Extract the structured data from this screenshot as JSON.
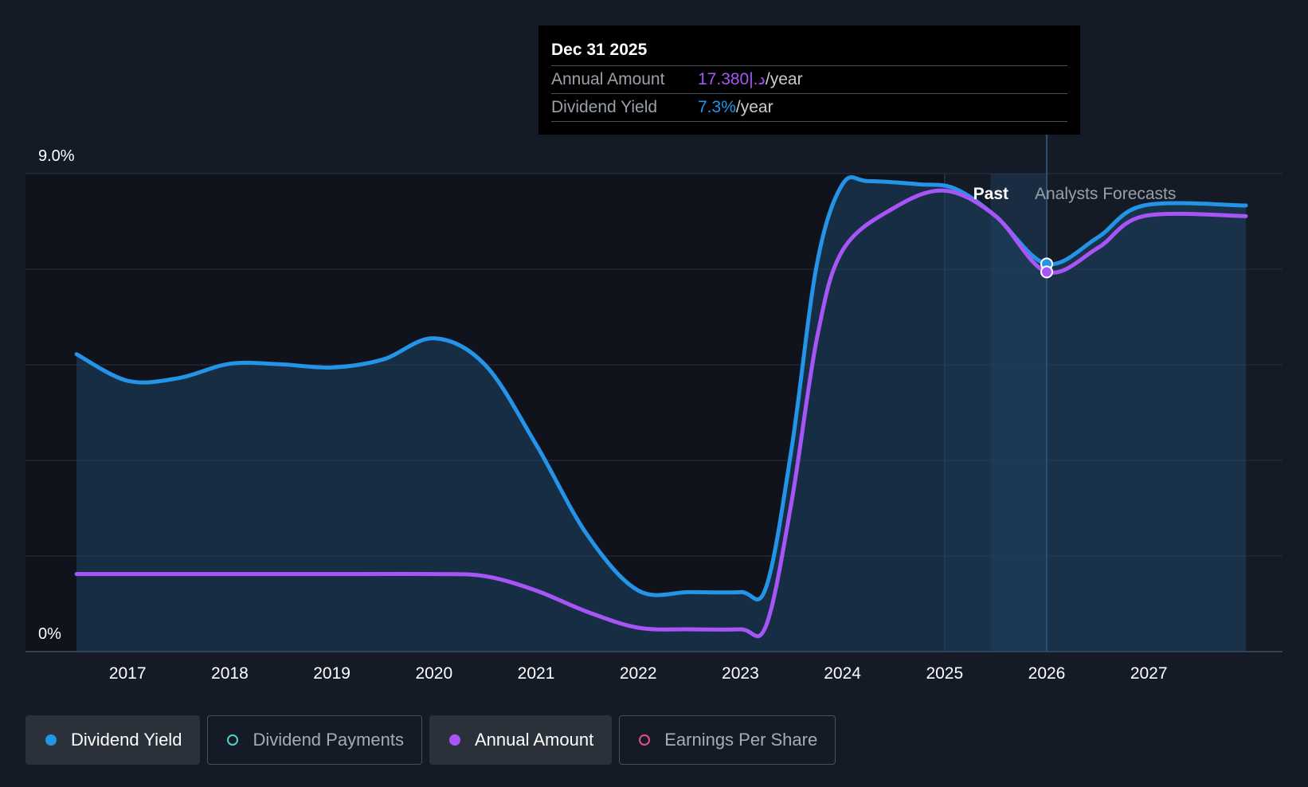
{
  "tooltip": {
    "date": "Dec 31 2025",
    "rows": [
      {
        "label": "Annual Amount",
        "value": "17.380|.د",
        "unit": "/year",
        "color": "#a855f7"
      },
      {
        "label": "Dividend Yield",
        "value": "7.3%",
        "unit": "/year",
        "color": "#2394e8"
      }
    ]
  },
  "legend": [
    {
      "label": "Dividend Yield",
      "color": "#2394e8",
      "filled": true,
      "active": true
    },
    {
      "label": "Dividend Payments",
      "color": "#4fd1c5",
      "filled": false,
      "active": false
    },
    {
      "label": "Annual Amount",
      "color": "#a855f7",
      "filled": true,
      "active": true
    },
    {
      "label": "Earnings Per Share",
      "color": "#e0508a",
      "filled": false,
      "active": false
    }
  ],
  "chart_data": {
    "type": "line",
    "title": "",
    "xlabel": "",
    "ylabel": "",
    "y_tick_labels": [
      "0%",
      "9.0%"
    ],
    "ylim": [
      0,
      9.0
    ],
    "xlim": [
      2016.0,
      2027.95
    ],
    "x_ticks": [
      2017,
      2018,
      2019,
      2020,
      2021,
      2022,
      2023,
      2024,
      2025,
      2026,
      2027
    ],
    "gridlines": [
      0,
      1.8,
      3.6,
      5.4,
      7.2,
      9.0
    ],
    "past_label": "Past",
    "forecast_label": "Analysts Forecasts",
    "past_end_x": 2025.0,
    "highlight_range": [
      2025.45,
      2026.0
    ],
    "cursor_x": 2026.0,
    "series": [
      {
        "name": "Dividend Yield",
        "color": "#2394e8",
        "fill": true,
        "points": [
          [
            2016.5,
            5.6
          ],
          [
            2017.0,
            5.1
          ],
          [
            2017.5,
            5.15
          ],
          [
            2018.0,
            5.42
          ],
          [
            2018.5,
            5.41
          ],
          [
            2019.0,
            5.35
          ],
          [
            2019.5,
            5.5
          ],
          [
            2020.0,
            5.9
          ],
          [
            2020.5,
            5.4
          ],
          [
            2021.0,
            3.9
          ],
          [
            2021.5,
            2.2
          ],
          [
            2022.0,
            1.15
          ],
          [
            2022.5,
            1.12
          ],
          [
            2023.0,
            1.12
          ],
          [
            2023.25,
            1.2
          ],
          [
            2023.5,
            3.8
          ],
          [
            2023.75,
            7.3
          ],
          [
            2024.0,
            8.8
          ],
          [
            2024.25,
            8.86
          ],
          [
            2024.75,
            8.8
          ],
          [
            2025.1,
            8.72
          ],
          [
            2025.5,
            8.2
          ],
          [
            2026.0,
            7.3
          ],
          [
            2026.5,
            7.8
          ],
          [
            2026.95,
            8.4
          ],
          [
            2027.95,
            8.4
          ]
        ]
      },
      {
        "name": "Annual Amount",
        "color": "#a855f7",
        "fill": false,
        "points": [
          [
            2016.5,
            1.46
          ],
          [
            2017.0,
            1.46
          ],
          [
            2018.0,
            1.46
          ],
          [
            2019.0,
            1.46
          ],
          [
            2020.0,
            1.46
          ],
          [
            2020.5,
            1.42
          ],
          [
            2021.0,
            1.15
          ],
          [
            2021.5,
            0.75
          ],
          [
            2022.0,
            0.45
          ],
          [
            2022.5,
            0.42
          ],
          [
            2023.0,
            0.42
          ],
          [
            2023.25,
            0.48
          ],
          [
            2023.5,
            2.8
          ],
          [
            2023.75,
            5.9
          ],
          [
            2024.0,
            7.55
          ],
          [
            2024.5,
            8.35
          ],
          [
            2025.0,
            8.68
          ],
          [
            2025.5,
            8.2
          ],
          [
            2026.0,
            7.15
          ],
          [
            2026.5,
            7.6
          ],
          [
            2026.95,
            8.2
          ],
          [
            2027.95,
            8.2
          ]
        ]
      }
    ]
  }
}
